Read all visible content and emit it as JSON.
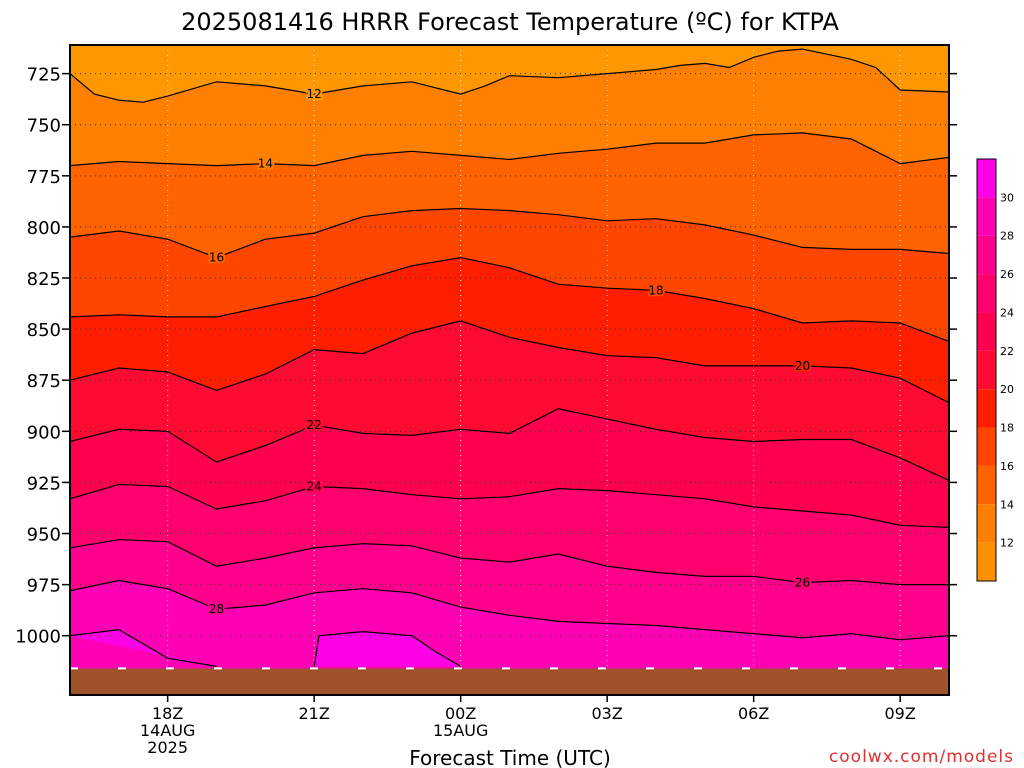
{
  "title": "2025081416 HRRR Forecast Temperature (ºC) for KTPA",
  "credit": {
    "text": "coolwx.com/models",
    "color": "#e03030"
  },
  "chart_data": {
    "type": "contour",
    "title": "2025081416 HRRR Forecast Temperature (ºC) for KTPA",
    "xlabel": "Forecast Time (UTC)",
    "ylabel": "",
    "x_unit": "hours after 2025-08-14 16Z",
    "xlim": [
      0,
      18
    ],
    "y_unit": "hPa",
    "ylim": [
      711,
      1029
    ],
    "y_inverted": true,
    "grid": true,
    "yticks": [
      725,
      750,
      775,
      800,
      825,
      850,
      875,
      900,
      925,
      950,
      975,
      1000
    ],
    "xticks": [
      {
        "hour": 2,
        "lines": [
          "18Z",
          "14AUG",
          "2025"
        ]
      },
      {
        "hour": 5,
        "lines": [
          "21Z"
        ]
      },
      {
        "hour": 8,
        "lines": [
          "00Z",
          "15AUG"
        ]
      },
      {
        "hour": 11,
        "lines": [
          "03Z"
        ]
      },
      {
        "hour": 14,
        "lines": [
          "06Z"
        ]
      },
      {
        "hour": 17,
        "lines": [
          "09Z"
        ]
      }
    ],
    "ground_level_hPa": 1016,
    "ground_color": "#a0522d",
    "fill_colors": {
      "below_12": "#ff9800",
      "12_14": "#ff7f00",
      "14_16": "#ff6300",
      "16_18": "#ff4600",
      "18_20": "#ff1e00",
      "20_22": "#ff0a32",
      "22_24": "#ff0050",
      "24_26": "#ff006e",
      "26_28": "#ff008c",
      "28_30": "#ff00b4",
      "30_32": "#ff00e6"
    },
    "colorbar": {
      "ticks": [
        12,
        14,
        16,
        18,
        20,
        22,
        24,
        26,
        28,
        30
      ],
      "range": [
        10,
        32
      ],
      "colors": [
        "#ff9100",
        "#ff7f00",
        "#ff6300",
        "#ff4600",
        "#ff1e00",
        "#ff0a32",
        "#ff0050",
        "#ff006e",
        "#ff008c",
        "#ff00b4",
        "#ff00e6"
      ]
    },
    "contours": [
      {
        "level": 12,
        "label_x": 5.0,
        "points": [
          [
            0,
            725
          ],
          [
            0.5,
            735
          ],
          [
            1,
            738
          ],
          [
            1.5,
            739
          ],
          [
            2,
            736
          ],
          [
            3,
            729
          ],
          [
            4,
            731
          ],
          [
            5,
            735
          ],
          [
            6,
            731
          ],
          [
            7,
            729
          ],
          [
            8,
            735
          ],
          [
            8.5,
            731
          ],
          [
            9,
            726
          ],
          [
            10,
            727
          ],
          [
            11,
            725
          ],
          [
            12,
            723
          ],
          [
            12.5,
            721
          ],
          [
            13,
            720
          ],
          [
            13.5,
            722
          ],
          [
            14,
            717
          ],
          [
            14.5,
            714
          ],
          [
            15,
            713
          ],
          [
            16,
            718
          ],
          [
            16.5,
            722
          ],
          [
            17,
            733
          ],
          [
            18,
            734
          ]
        ]
      },
      {
        "level": 14,
        "label_x": 4.0,
        "points": [
          [
            0,
            770
          ],
          [
            1,
            768
          ],
          [
            2,
            769
          ],
          [
            3,
            770
          ],
          [
            4,
            769
          ],
          [
            5,
            770
          ],
          [
            6,
            765
          ],
          [
            7,
            763
          ],
          [
            8,
            765
          ],
          [
            9,
            767
          ],
          [
            10,
            764
          ],
          [
            11,
            762
          ],
          [
            12,
            759
          ],
          [
            13,
            759
          ],
          [
            14,
            755
          ],
          [
            15,
            754
          ],
          [
            16,
            757
          ],
          [
            17,
            769
          ],
          [
            18,
            766
          ]
        ]
      },
      {
        "level": 16,
        "label_x": 3.0,
        "points": [
          [
            0,
            805
          ],
          [
            1,
            802
          ],
          [
            2,
            806
          ],
          [
            3,
            815
          ],
          [
            4,
            806
          ],
          [
            5,
            803
          ],
          [
            6,
            795
          ],
          [
            7,
            792
          ],
          [
            8,
            791
          ],
          [
            9,
            792
          ],
          [
            10,
            794
          ],
          [
            11,
            797
          ],
          [
            12,
            796
          ],
          [
            13,
            799
          ],
          [
            14,
            804
          ],
          [
            15,
            810
          ],
          [
            16,
            811
          ],
          [
            17,
            811
          ],
          [
            18,
            813
          ]
        ]
      },
      {
        "level": 18,
        "label_x": 12.0,
        "points": [
          [
            0,
            844
          ],
          [
            1,
            843
          ],
          [
            2,
            844
          ],
          [
            3,
            844
          ],
          [
            4,
            839
          ],
          [
            5,
            834
          ],
          [
            6,
            826
          ],
          [
            7,
            819
          ],
          [
            8,
            815
          ],
          [
            9,
            820
          ],
          [
            10,
            828
          ],
          [
            11,
            830
          ],
          [
            12,
            831
          ],
          [
            13,
            835
          ],
          [
            14,
            840
          ],
          [
            15,
            847
          ],
          [
            16,
            846
          ],
          [
            17,
            847
          ],
          [
            18,
            856
          ]
        ]
      },
      {
        "level": 20,
        "label_x": 15.0,
        "points": [
          [
            0,
            875
          ],
          [
            1,
            869
          ],
          [
            2,
            871
          ],
          [
            3,
            880
          ],
          [
            4,
            872
          ],
          [
            5,
            860
          ],
          [
            6,
            862
          ],
          [
            7,
            852
          ],
          [
            8,
            846
          ],
          [
            9,
            854
          ],
          [
            10,
            859
          ],
          [
            11,
            863
          ],
          [
            12,
            864
          ],
          [
            13,
            868
          ],
          [
            14,
            868
          ],
          [
            15,
            868
          ],
          [
            16,
            869
          ],
          [
            17,
            874
          ],
          [
            18,
            886
          ]
        ]
      },
      {
        "level": 22,
        "label_x": 5.0,
        "points": [
          [
            0,
            905
          ],
          [
            1,
            899
          ],
          [
            2,
            900
          ],
          [
            3,
            915
          ],
          [
            4,
            907
          ],
          [
            5,
            897
          ],
          [
            6,
            901
          ],
          [
            7,
            902
          ],
          [
            8,
            899
          ],
          [
            9,
            901
          ],
          [
            10,
            889
          ],
          [
            11,
            894
          ],
          [
            12,
            899
          ],
          [
            13,
            903
          ],
          [
            14,
            905
          ],
          [
            15,
            904
          ],
          [
            16,
            904
          ],
          [
            17,
            913
          ],
          [
            18,
            924
          ]
        ]
      },
      {
        "level": 24,
        "label_x": 5.0,
        "points": [
          [
            0,
            933
          ],
          [
            1,
            926
          ],
          [
            2,
            927
          ],
          [
            3,
            938
          ],
          [
            4,
            934
          ],
          [
            5,
            927
          ],
          [
            6,
            928
          ],
          [
            7,
            931
          ],
          [
            8,
            933
          ],
          [
            9,
            932
          ],
          [
            10,
            928
          ],
          [
            11,
            929
          ],
          [
            12,
            931
          ],
          [
            13,
            933
          ],
          [
            14,
            937
          ],
          [
            15,
            939
          ],
          [
            16,
            941
          ],
          [
            17,
            946
          ],
          [
            18,
            947
          ]
        ]
      },
      {
        "level": 26,
        "label_x": 15.0,
        "points": [
          [
            0,
            957
          ],
          [
            1,
            953
          ],
          [
            2,
            954
          ],
          [
            3,
            966
          ],
          [
            4,
            962
          ],
          [
            5,
            957
          ],
          [
            6,
            955
          ],
          [
            7,
            956
          ],
          [
            8,
            962
          ],
          [
            9,
            964
          ],
          [
            10,
            960
          ],
          [
            11,
            966
          ],
          [
            12,
            969
          ],
          [
            13,
            971
          ],
          [
            14,
            971
          ],
          [
            15,
            974
          ],
          [
            16,
            973
          ],
          [
            17,
            975
          ],
          [
            18,
            975
          ]
        ]
      },
      {
        "level": 28,
        "label_x": 3.0,
        "points": [
          [
            0,
            978
          ],
          [
            1,
            973
          ],
          [
            2,
            977
          ],
          [
            3,
            987
          ],
          [
            4,
            985
          ],
          [
            5,
            979
          ],
          [
            6,
            977
          ],
          [
            7,
            979
          ],
          [
            8,
            986
          ],
          [
            9,
            990
          ],
          [
            10,
            993
          ],
          [
            11,
            994
          ],
          [
            12,
            995
          ],
          [
            13,
            997
          ],
          [
            14,
            999
          ],
          [
            15,
            1001
          ],
          [
            16,
            999
          ],
          [
            17,
            1002
          ],
          [
            18,
            1000
          ]
        ]
      },
      {
        "level": 30,
        "label_x": null,
        "points": [
          [
            0,
            1000
          ],
          [
            1,
            997
          ],
          [
            2,
            1011
          ],
          [
            3,
            1015
          ]
        ]
      },
      {
        "level": 30,
        "label_x": null,
        "points": [
          [
            5,
            1015
          ],
          [
            5.1,
            1000
          ],
          [
            6,
            998
          ],
          [
            7,
            1000
          ],
          [
            7.5,
            1008
          ],
          [
            8,
            1015
          ]
        ]
      }
    ]
  }
}
